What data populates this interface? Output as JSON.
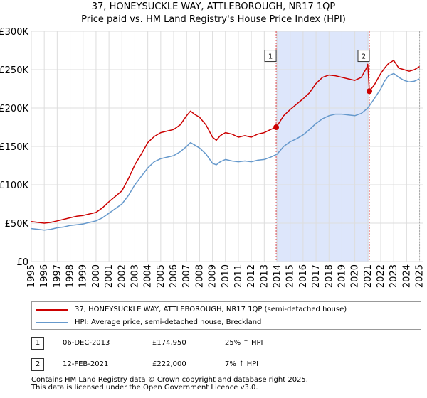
{
  "chart_data": {
    "type": "line",
    "title": "37, HONEYSUCKLE WAY, ATTLEBOROUGH, NR17 1QP",
    "subtitle": "Price paid vs. HM Land Registry's House Price Index (HPI)",
    "xlabel": "",
    "ylabel": "",
    "xlim": [
      1995.0,
      2025.3
    ],
    "ylim": [
      0,
      300000
    ],
    "x_ticks": [
      "1995",
      "1996",
      "1997",
      "1998",
      "1999",
      "2000",
      "2001",
      "2002",
      "2003",
      "2004",
      "2005",
      "2006",
      "2007",
      "2008",
      "2009",
      "2010",
      "2011",
      "2012",
      "2013",
      "2014",
      "2015",
      "2016",
      "2017",
      "2018",
      "2019",
      "2020",
      "2021",
      "2022",
      "2023",
      "2024",
      "2025"
    ],
    "y_ticks": [
      {
        "value": 0,
        "label": "£0"
      },
      {
        "value": 50000,
        "label": "£50K"
      },
      {
        "value": 100000,
        "label": "£100K"
      },
      {
        "value": 150000,
        "label": "£150K"
      },
      {
        "value": 200000,
        "label": "£200K"
      },
      {
        "value": 250000,
        "label": "£250K"
      },
      {
        "value": 300000,
        "label": "£300K"
      }
    ],
    "grid": true,
    "shaded_region": {
      "from": 2013.92,
      "to": 2021.12,
      "color": "#dde6fb"
    },
    "series": [
      {
        "name": "37, HONEYSUCKLE WAY, ATTLEBOROUGH, NR17 1QP (semi-detached house)",
        "color": "#cc0000",
        "x": [
          1995.0,
          1995.5,
          1996.0,
          1996.5,
          1997.0,
          1997.5,
          1998.0,
          1998.5,
          1999.0,
          1999.5,
          2000.0,
          2000.5,
          2001.0,
          2001.5,
          2002.0,
          2002.5,
          2003.0,
          2003.5,
          2004.0,
          2004.5,
          2005.0,
          2005.5,
          2006.0,
          2006.5,
          2007.0,
          2007.3,
          2007.6,
          2008.0,
          2008.5,
          2009.0,
          2009.3,
          2009.6,
          2010.0,
          2010.5,
          2011.0,
          2011.5,
          2012.0,
          2012.5,
          2013.0,
          2013.5,
          2013.92,
          2014.5,
          2015.0,
          2015.5,
          2016.0,
          2016.5,
          2017.0,
          2017.5,
          2018.0,
          2018.5,
          2019.0,
          2019.5,
          2020.0,
          2020.5,
          2020.9,
          2021.0,
          2021.12,
          2021.5,
          2022.0,
          2022.3,
          2022.6,
          2023.0,
          2023.4,
          2023.8,
          2024.2,
          2024.6,
          2025.0
        ],
        "values": [
          52000,
          51000,
          50000,
          51000,
          53000,
          55000,
          57000,
          59000,
          60000,
          62000,
          64000,
          70000,
          78000,
          85000,
          92000,
          108000,
          126000,
          140000,
          155000,
          163000,
          168000,
          170000,
          172000,
          178000,
          190000,
          196000,
          192000,
          188000,
          178000,
          162000,
          158000,
          164000,
          168000,
          166000,
          162000,
          164000,
          162000,
          166000,
          168000,
          172000,
          174950,
          190000,
          198000,
          205000,
          212000,
          220000,
          232000,
          240000,
          243000,
          242000,
          240000,
          238000,
          236000,
          240000,
          252000,
          257000,
          222000,
          230000,
          245000,
          252000,
          258000,
          262000,
          252000,
          250000,
          248000,
          250000,
          254000
        ]
      },
      {
        "name": "HPI: Average price, semi-detached house, Breckland",
        "color": "#6699cc",
        "x": [
          1995.0,
          1995.5,
          1996.0,
          1996.5,
          1997.0,
          1997.5,
          1998.0,
          1998.5,
          1999.0,
          1999.5,
          2000.0,
          2000.5,
          2001.0,
          2001.5,
          2002.0,
          2002.5,
          2003.0,
          2003.5,
          2004.0,
          2004.5,
          2005.0,
          2005.5,
          2006.0,
          2006.5,
          2007.0,
          2007.3,
          2007.6,
          2008.0,
          2008.5,
          2009.0,
          2009.3,
          2009.6,
          2010.0,
          2010.5,
          2011.0,
          2011.5,
          2012.0,
          2012.5,
          2013.0,
          2013.5,
          2014.0,
          2014.5,
          2015.0,
          2015.5,
          2016.0,
          2016.5,
          2017.0,
          2017.5,
          2018.0,
          2018.5,
          2019.0,
          2019.5,
          2020.0,
          2020.5,
          2021.0,
          2021.5,
          2022.0,
          2022.3,
          2022.6,
          2023.0,
          2023.4,
          2023.8,
          2024.2,
          2024.6,
          2025.0
        ],
        "values": [
          43000,
          42000,
          41000,
          42000,
          44000,
          45000,
          47000,
          48000,
          49000,
          51000,
          53000,
          57000,
          63000,
          69000,
          75000,
          86000,
          100000,
          111000,
          122000,
          130000,
          134000,
          136000,
          138000,
          143000,
          150000,
          155000,
          152000,
          148000,
          140000,
          128000,
          126000,
          130000,
          133000,
          131000,
          130000,
          131000,
          130000,
          132000,
          133000,
          136000,
          140000,
          150000,
          156000,
          160000,
          165000,
          172000,
          180000,
          186000,
          190000,
          192000,
          192000,
          191000,
          190000,
          193000,
          200000,
          212000,
          225000,
          235000,
          242000,
          245000,
          240000,
          236000,
          234000,
          235000,
          238000
        ]
      }
    ],
    "annotations": [
      {
        "label": "1",
        "x": 2013.92,
        "value": 174950,
        "box_value": 268000
      },
      {
        "label": "2",
        "x": 2021.12,
        "value": 222000,
        "box_value": 268000
      }
    ]
  },
  "transactions": [
    {
      "num": "1",
      "date": "06-DEC-2013",
      "price": "£174,950",
      "hpi": "25% ↑ HPI"
    },
    {
      "num": "2",
      "date": "12-FEB-2021",
      "price": "£222,000",
      "hpi": "7% ↑ HPI"
    }
  ],
  "footer": {
    "line1": "Contains HM Land Registry data © Crown copyright and database right 2025.",
    "line2": "This data is licensed under the Open Government Licence v3.0."
  }
}
